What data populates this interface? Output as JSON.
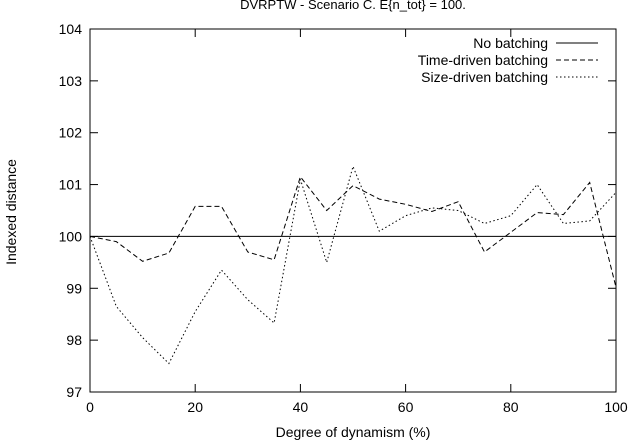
{
  "chart_data": {
    "type": "line",
    "title": "DVRPTW - Scenario C. E{n_tot} = 100.",
    "xlabel": "Degree of dynamism (%)",
    "ylabel": "Indexed distance",
    "xlim": [
      0,
      100
    ],
    "ylim": [
      97,
      104
    ],
    "xticks": [
      0,
      20,
      40,
      60,
      80,
      100
    ],
    "yticks": [
      97,
      98,
      99,
      100,
      101,
      102,
      103,
      104
    ],
    "grid": false,
    "legend": "top-right",
    "series": [
      {
        "name": "No batching",
        "style": "solid",
        "x": [
          0,
          100
        ],
        "y": [
          100,
          100
        ]
      },
      {
        "name": "Time-driven batching",
        "style": "dashed",
        "x": [
          0,
          5,
          10,
          15,
          20,
          25,
          30,
          35,
          40,
          45,
          50,
          55,
          60,
          65,
          70,
          75,
          80,
          85,
          90,
          95,
          100
        ],
        "y": [
          100.0,
          99.9,
          99.52,
          99.68,
          100.58,
          100.58,
          99.7,
          99.55,
          101.15,
          100.5,
          100.98,
          100.72,
          100.62,
          100.48,
          100.67,
          99.7,
          100.08,
          100.46,
          100.42,
          101.04,
          99.02
        ]
      },
      {
        "name": "Size-driven batching",
        "style": "dotted",
        "x": [
          0,
          5,
          10,
          15,
          20,
          25,
          30,
          35,
          40,
          45,
          50,
          55,
          60,
          65,
          70,
          75,
          80,
          85,
          90,
          95,
          100
        ],
        "y": [
          100.0,
          98.65,
          98.05,
          97.55,
          98.55,
          99.35,
          98.78,
          98.33,
          101.1,
          99.5,
          101.35,
          100.1,
          100.4,
          100.55,
          100.5,
          100.25,
          100.4,
          101.0,
          100.25,
          100.3,
          100.85
        ]
      }
    ]
  }
}
